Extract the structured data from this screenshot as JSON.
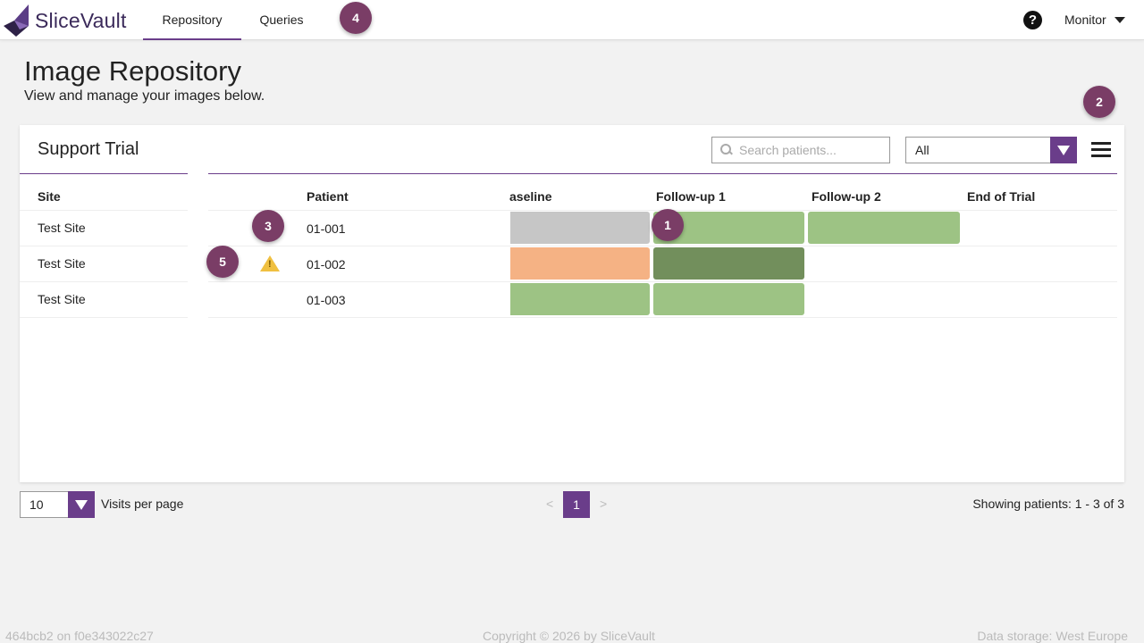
{
  "app": {
    "name": "SliceVault",
    "logo_color": "#3b2a5a",
    "accent": "#6a3d8a",
    "badge_color": "#7a3d66"
  },
  "nav": {
    "tabs": [
      {
        "label": "Repository",
        "active": true
      },
      {
        "label": "Queries",
        "active": false
      }
    ],
    "help_label": "?",
    "user_label": "Monitor"
  },
  "badges": [
    "1",
    "2",
    "3",
    "4",
    "5"
  ],
  "page": {
    "title": "Image Repository",
    "subtitle": "View and manage your images below."
  },
  "card": {
    "trial_name": "Support Trial",
    "search_placeholder": "Search patients...",
    "filter_value": "All"
  },
  "table": {
    "headers": {
      "site": "Site",
      "patient": "Patient",
      "visits": [
        "aseline",
        "Follow-up 1",
        "Follow-up 2",
        "End of Trial"
      ]
    },
    "rows": [
      {
        "site": "Test Site",
        "patient": "01-001",
        "warning": false,
        "visits": [
          "grey",
          "green",
          "green",
          null
        ]
      },
      {
        "site": "Test Site",
        "patient": "01-002",
        "warning": true,
        "visits": [
          "orange",
          "darkgreen",
          null,
          null
        ]
      },
      {
        "site": "Test Site",
        "patient": "01-003",
        "warning": false,
        "visits": [
          "green",
          "green",
          null,
          null
        ]
      }
    ],
    "status_colors": {
      "grey": "#c6c6c6",
      "green": "#9dc384",
      "darkgreen": "#728f5c",
      "orange": "#f5b284"
    }
  },
  "pagination": {
    "per_page_value": "10",
    "per_page_label": "Visits per page",
    "prev": "<",
    "next": ">",
    "current_page": "1",
    "showing": "Showing patients: 1 - 3 of 3"
  },
  "footer": {
    "build": "464bcb2 on f0e343022c27",
    "copyright": "Copyright © 2026 by SliceVault",
    "storage": "Data storage: West Europe"
  }
}
